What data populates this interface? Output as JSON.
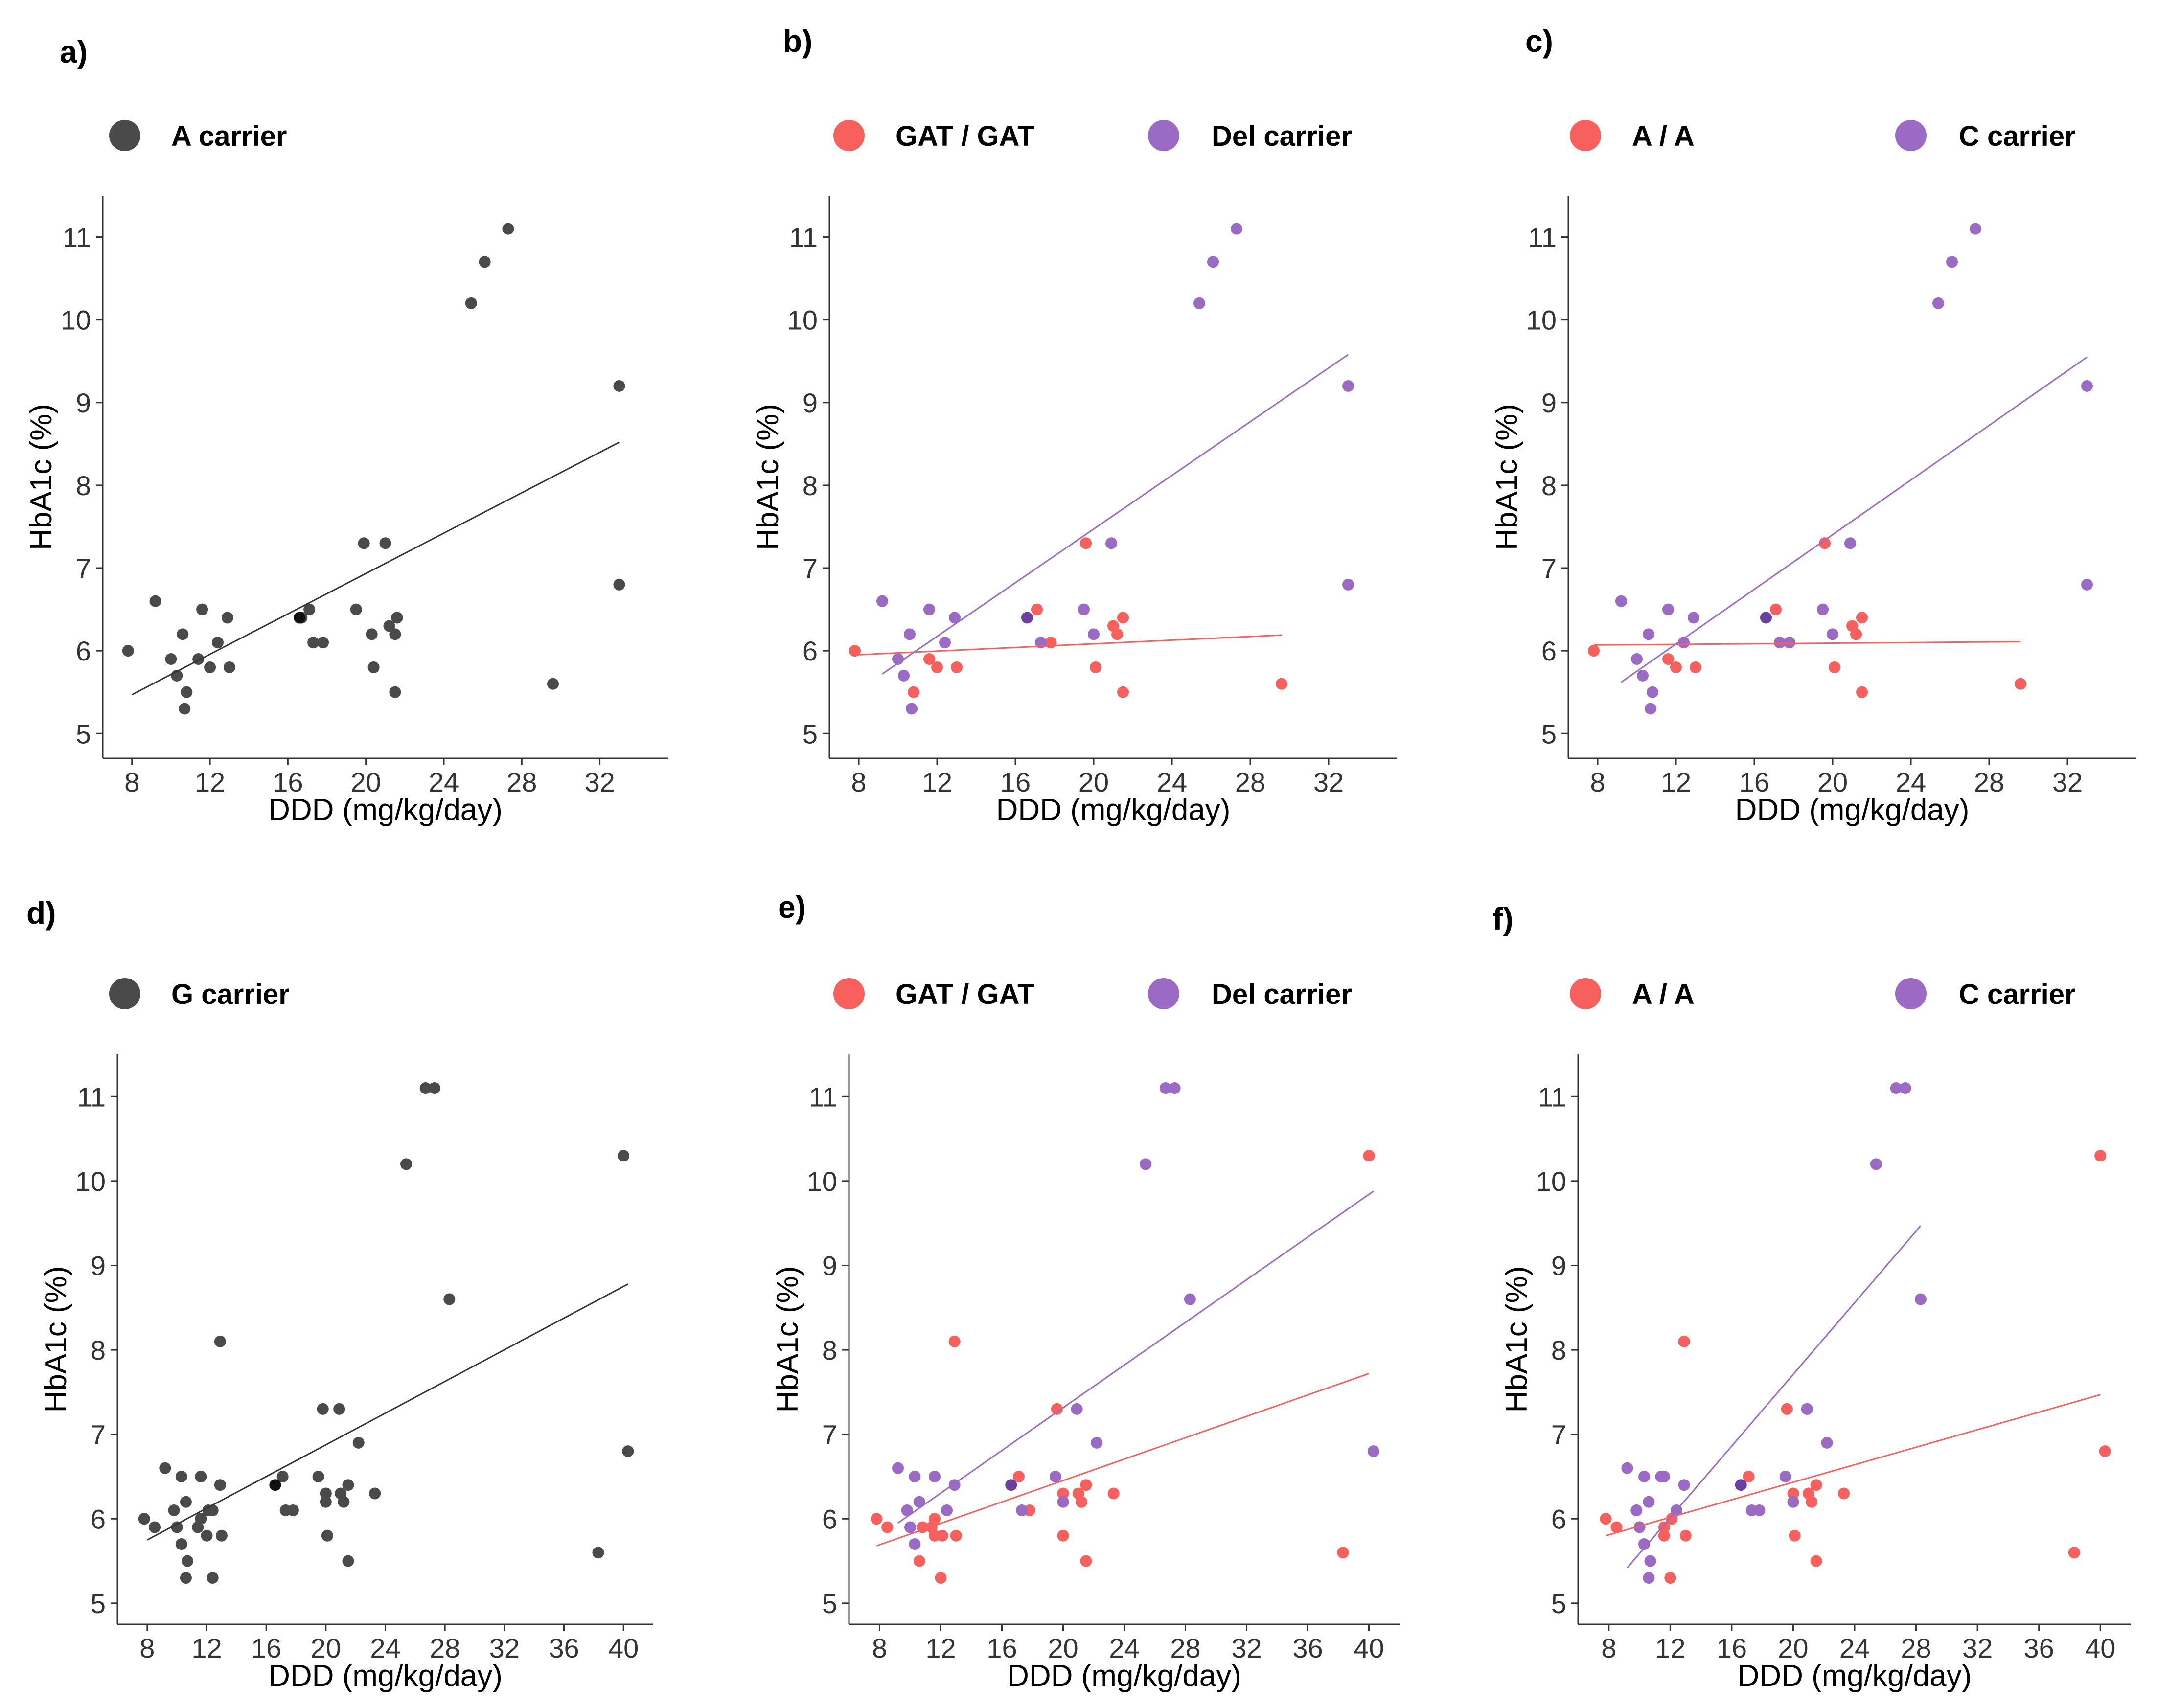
{
  "colors": {
    "black": "#4a4a4a",
    "red": "#f8605e",
    "purple": "#9b6ac4",
    "overlap": "#6a3fa0"
  },
  "chart_data": [
    {
      "id": "a",
      "panel_label": "a)",
      "type": "scatter",
      "xlabel": "DDD (mg/kg/day)",
      "ylabel": "HbA1c (%)",
      "xlim": [
        6.5,
        35.5
      ],
      "ylim": [
        4.7,
        11.5
      ],
      "xticks": [
        8,
        12,
        16,
        20,
        24,
        28,
        32
      ],
      "yticks": [
        5,
        6,
        7,
        8,
        9,
        10,
        11
      ],
      "legend": [
        {
          "label": "A carrier",
          "color": "black"
        }
      ],
      "series": [
        {
          "name": "A carrier",
          "color": "black",
          "x": [
            7.8,
            9.2,
            10,
            10.3,
            10.6,
            10.7,
            10.8,
            11.4,
            11.6,
            12,
            12.4,
            12.9,
            13,
            16.7,
            17.1,
            17.3,
            17.8,
            19.5,
            19.9,
            20.3,
            20.4,
            21,
            21.2,
            21.5,
            21.5,
            21.6,
            25.4,
            26.1,
            27.3,
            29.6,
            33,
            33
          ],
          "y": [
            6.0,
            6.6,
            5.9,
            5.7,
            6.2,
            5.3,
            5.5,
            5.9,
            6.5,
            5.8,
            6.1,
            6.4,
            5.8,
            6.4,
            6.5,
            6.1,
            6.1,
            6.5,
            7.3,
            6.2,
            5.8,
            7.3,
            6.3,
            6.2,
            5.5,
            6.4,
            10.2,
            10.7,
            11.1,
            5.6,
            9.2,
            6.8
          ]
        }
      ],
      "fits": [
        {
          "color": "black",
          "x": [
            8.0,
            33.0
          ],
          "y": [
            5.47,
            8.52
          ]
        }
      ],
      "overlaps": [
        {
          "x": 16.6,
          "y": 6.4
        }
      ]
    },
    {
      "id": "b",
      "panel_label": "b)",
      "type": "scatter",
      "xlabel": "DDD (mg/kg/day)",
      "ylabel": "HbA1c (%)",
      "xlim": [
        6.5,
        35.5
      ],
      "ylim": [
        4.7,
        11.5
      ],
      "xticks": [
        8,
        12,
        16,
        20,
        24,
        28,
        32
      ],
      "yticks": [
        5,
        6,
        7,
        8,
        9,
        10,
        11
      ],
      "legend": [
        {
          "label": "GAT / GAT",
          "color": "red"
        },
        {
          "label": "Del carrier",
          "color": "purple"
        }
      ],
      "series": [
        {
          "name": "GAT / GAT",
          "color": "red",
          "x": [
            7.8,
            10.8,
            11.6,
            12,
            13,
            17.1,
            17.8,
            19.6,
            20.1,
            21,
            21.2,
            21.5,
            21.5,
            29.6
          ],
          "y": [
            6.0,
            5.5,
            5.9,
            5.8,
            5.8,
            6.5,
            6.1,
            7.3,
            5.8,
            6.3,
            6.2,
            6.4,
            5.5,
            5.6
          ]
        },
        {
          "name": "Del carrier",
          "color": "purple",
          "x": [
            9.2,
            10,
            10.3,
            10.6,
            10.7,
            11.6,
            12.4,
            12.9,
            17.3,
            19.5,
            20,
            20.9,
            25.4,
            26.1,
            27.3,
            33,
            33
          ],
          "y": [
            6.6,
            5.9,
            5.7,
            6.2,
            5.3,
            6.5,
            6.1,
            6.4,
            6.1,
            6.5,
            6.2,
            7.3,
            10.2,
            10.7,
            11.1,
            9.2,
            6.8
          ]
        }
      ],
      "fits": [
        {
          "color": "red",
          "x": [
            7.8,
            29.6
          ],
          "y": [
            5.95,
            6.19
          ]
        },
        {
          "color": "purple",
          "x": [
            9.2,
            33.0
          ],
          "y": [
            5.72,
            9.58
          ]
        }
      ],
      "overlaps": [
        {
          "x": 16.6,
          "y": 6.4
        }
      ]
    },
    {
      "id": "c",
      "panel_label": "c)",
      "type": "scatter",
      "xlabel": "DDD (mg/kg/day)",
      "ylabel": "HbA1c (%)",
      "xlim": [
        6.5,
        35.5
      ],
      "ylim": [
        4.7,
        11.5
      ],
      "xticks": [
        8,
        12,
        16,
        20,
        24,
        28,
        32
      ],
      "yticks": [
        5,
        6,
        7,
        8,
        9,
        10,
        11
      ],
      "legend": [
        {
          "label": "A / A",
          "color": "red"
        },
        {
          "label": "C carrier",
          "color": "purple"
        }
      ],
      "series": [
        {
          "name": "A / A",
          "color": "red",
          "x": [
            7.8,
            11.6,
            12,
            13,
            17.1,
            19.6,
            20.1,
            21,
            21.2,
            21.5,
            21.5,
            29.6
          ],
          "y": [
            6.0,
            5.9,
            5.8,
            5.8,
            6.5,
            7.3,
            5.8,
            6.3,
            6.2,
            6.4,
            5.5,
            5.6
          ]
        },
        {
          "name": "C carrier",
          "color": "purple",
          "x": [
            9.2,
            10,
            10.3,
            10.6,
            10.7,
            10.8,
            11.6,
            12.4,
            12.9,
            17.3,
            17.8,
            19.5,
            20,
            20.9,
            25.4,
            26.1,
            27.3,
            33,
            33
          ],
          "y": [
            6.6,
            5.9,
            5.7,
            6.2,
            5.3,
            5.5,
            6.5,
            6.1,
            6.4,
            6.1,
            6.1,
            6.5,
            6.2,
            7.3,
            10.2,
            10.7,
            11.1,
            9.2,
            6.8
          ]
        }
      ],
      "fits": [
        {
          "color": "red",
          "x": [
            7.8,
            29.6
          ],
          "y": [
            6.07,
            6.11
          ]
        },
        {
          "color": "purple",
          "x": [
            9.2,
            33.0
          ],
          "y": [
            5.62,
            9.55
          ]
        }
      ],
      "overlaps": [
        {
          "x": 16.6,
          "y": 6.4
        }
      ]
    },
    {
      "id": "d",
      "panel_label": "d)",
      "type": "scatter",
      "xlabel": "DDD (mg/kg/day)",
      "ylabel": "HbA1c (%)",
      "xlim": [
        6,
        42
      ],
      "ylim": [
        4.75,
        11.5
      ],
      "xticks": [
        8,
        12,
        16,
        20,
        24,
        28,
        32,
        36,
        40
      ],
      "yticks": [
        5,
        6,
        7,
        8,
        9,
        10,
        11
      ],
      "legend": [
        {
          "label": "G carrier",
          "color": "black"
        }
      ],
      "series": [
        {
          "name": "G carrier",
          "color": "black",
          "x": [
            7.8,
            8.5,
            9.2,
            9.8,
            10,
            10.3,
            10.3,
            10.6,
            10.6,
            10.7,
            11.4,
            11.6,
            11.6,
            12,
            12.1,
            12.4,
            12.4,
            12.9,
            12.9,
            13,
            17.1,
            17.3,
            17.8,
            19.5,
            19.8,
            20,
            20,
            20.1,
            20.9,
            21,
            21.2,
            21.5,
            21.5,
            22.2,
            23.3,
            25.4,
            26.7,
            27.3,
            28.3,
            38.3,
            40,
            40.3
          ],
          "y": [
            6.0,
            5.9,
            6.6,
            6.1,
            5.9,
            5.7,
            6.5,
            6.2,
            5.3,
            5.5,
            5.9,
            6.5,
            6.0,
            5.8,
            6.1,
            6.1,
            5.3,
            6.4,
            8.1,
            5.8,
            6.5,
            6.1,
            6.1,
            6.5,
            7.3,
            6.3,
            6.2,
            5.8,
            7.3,
            6.3,
            6.2,
            6.4,
            5.5,
            6.9,
            6.3,
            10.2,
            11.1,
            11.1,
            8.6,
            5.6,
            10.3,
            6.8
          ]
        }
      ],
      "fits": [
        {
          "color": "black",
          "x": [
            8.0,
            40.3
          ],
          "y": [
            5.75,
            8.78
          ]
        }
      ],
      "overlaps": [
        {
          "x": 16.6,
          "y": 6.4
        }
      ]
    },
    {
      "id": "e",
      "panel_label": "e)",
      "type": "scatter",
      "xlabel": "DDD (mg/kg/day)",
      "ylabel": "HbA1c (%)",
      "xlim": [
        6,
        42
      ],
      "ylim": [
        4.75,
        11.5
      ],
      "xticks": [
        8,
        12,
        16,
        20,
        24,
        28,
        32,
        36,
        40
      ],
      "yticks": [
        5,
        6,
        7,
        8,
        9,
        10,
        11
      ],
      "legend": [
        {
          "label": "GAT / GAT",
          "color": "red"
        },
        {
          "label": "Del carrier",
          "color": "purple"
        }
      ],
      "series": [
        {
          "name": "GAT / GAT",
          "color": "red",
          "x": [
            7.8,
            8.5,
            10.6,
            10.8,
            11.4,
            11.6,
            11.6,
            12,
            12.1,
            12.9,
            13,
            17.1,
            17.8,
            19.6,
            20,
            20,
            21,
            21.2,
            21.5,
            21.5,
            23.3,
            38.3,
            40
          ],
          "y": [
            6.0,
            5.9,
            5.5,
            5.9,
            5.9,
            6.0,
            5.8,
            5.3,
            5.8,
            8.1,
            5.8,
            6.5,
            6.1,
            7.3,
            6.3,
            5.8,
            6.3,
            6.2,
            6.4,
            5.5,
            6.3,
            5.6,
            10.3
          ]
        },
        {
          "name": "Del carrier",
          "color": "purple",
          "x": [
            9.2,
            9.8,
            10,
            10.3,
            10.3,
            10.6,
            11.6,
            12.4,
            12.9,
            17.3,
            19.5,
            20,
            20.9,
            22.2,
            25.4,
            26.7,
            27.3,
            28.3,
            40.3
          ],
          "y": [
            6.6,
            6.1,
            5.9,
            5.7,
            6.5,
            6.2,
            6.5,
            6.1,
            6.4,
            6.1,
            6.5,
            6.2,
            7.3,
            6.9,
            10.2,
            11.1,
            11.1,
            8.6,
            6.8
          ]
        }
      ],
      "fits": [
        {
          "color": "red",
          "x": [
            7.8,
            40.0
          ],
          "y": [
            5.68,
            7.72
          ]
        },
        {
          "color": "purple",
          "x": [
            9.2,
            40.3
          ],
          "y": [
            5.95,
            9.88
          ]
        }
      ],
      "overlaps": [
        {
          "x": 16.6,
          "y": 6.4
        }
      ]
    },
    {
      "id": "f",
      "panel_label": "f)",
      "type": "scatter",
      "xlabel": "DDD (mg/kg/day)",
      "ylabel": "HbA1c (%)",
      "xlim": [
        6,
        42
      ],
      "ylim": [
        4.75,
        11.5
      ],
      "xticks": [
        8,
        12,
        16,
        20,
        24,
        28,
        32,
        36,
        40
      ],
      "yticks": [
        5,
        6,
        7,
        8,
        9,
        10,
        11
      ],
      "legend": [
        {
          "label": "A / A",
          "color": "red"
        },
        {
          "label": "C carrier",
          "color": "purple"
        }
      ],
      "series": [
        {
          "name": "A / A",
          "color": "red",
          "x": [
            7.8,
            8.5,
            11.6,
            11.6,
            12,
            12.1,
            12.9,
            13,
            17.1,
            19.6,
            20,
            20.1,
            21,
            21.2,
            21.5,
            21.5,
            23.3,
            38.3,
            40,
            40.3
          ],
          "y": [
            6.0,
            5.9,
            5.9,
            5.8,
            5.3,
            6.0,
            8.1,
            5.8,
            6.5,
            7.3,
            6.3,
            5.8,
            6.3,
            6.2,
            6.4,
            5.5,
            6.3,
            5.6,
            10.3,
            6.8
          ]
        },
        {
          "name": "C carrier",
          "color": "purple",
          "x": [
            9.2,
            9.8,
            10,
            10.3,
            10.3,
            10.6,
            10.6,
            10.7,
            11.4,
            11.6,
            12.4,
            12.9,
            17.3,
            17.8,
            19.5,
            20,
            20.9,
            22.2,
            25.4,
            26.7,
            27.3,
            28.3
          ],
          "y": [
            6.6,
            6.1,
            5.9,
            5.7,
            6.5,
            6.2,
            5.3,
            5.5,
            6.5,
            6.5,
            6.1,
            6.4,
            6.1,
            6.1,
            6.5,
            6.2,
            7.3,
            6.9,
            10.2,
            11.1,
            11.1,
            8.6
          ]
        }
      ],
      "fits": [
        {
          "color": "red",
          "x": [
            7.8,
            40.0
          ],
          "y": [
            5.8,
            7.47
          ]
        },
        {
          "color": "purple",
          "x": [
            9.2,
            28.3
          ],
          "y": [
            5.42,
            9.47
          ]
        }
      ],
      "overlaps": [
        {
          "x": 16.6,
          "y": 6.4
        }
      ]
    }
  ]
}
